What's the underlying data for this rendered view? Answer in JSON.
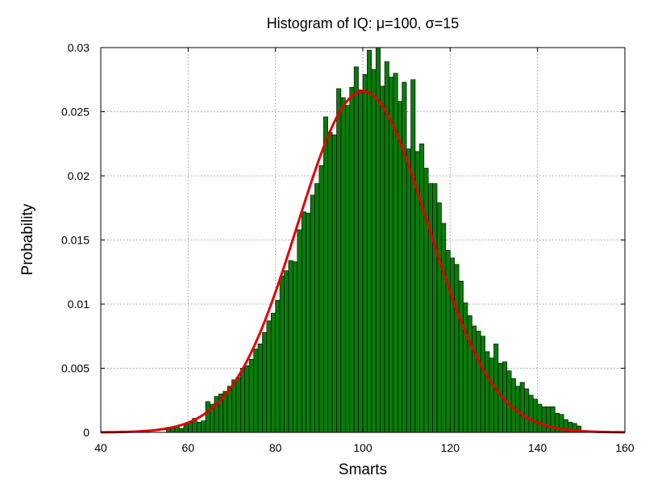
{
  "chart_data": {
    "type": "bar",
    "title": "Histogram of IQ: μ=100, σ=15",
    "xlabel": "Smarts",
    "ylabel": "Probability",
    "xlim": [
      40,
      160
    ],
    "ylim": [
      0,
      0.03
    ],
    "grid": true,
    "x_ticks": [
      "40",
      "60",
      "80",
      "100",
      "120",
      "140",
      "160"
    ],
    "y_ticks": [
      "0",
      "0.005",
      "0.01",
      "0.015",
      "0.02",
      "0.025",
      "0.03"
    ],
    "colors": {
      "bars": "#0b7a0b",
      "bar_edge": "#000000",
      "curve": "#e00000"
    },
    "histogram": {
      "bin_start": 55,
      "bin_width": 1,
      "values": [
        0.0004,
        0.0004,
        0.0005,
        0.0003,
        0.0007,
        0.0008,
        0.0011,
        0.0008,
        0.0009,
        0.0024,
        0.0022,
        0.0028,
        0.003,
        0.0032,
        0.0036,
        0.0041,
        0.0043,
        0.005,
        0.0052,
        0.0057,
        0.0065,
        0.0069,
        0.0078,
        0.0087,
        0.0093,
        0.0103,
        0.0122,
        0.0126,
        0.0134,
        0.0133,
        0.0158,
        0.0172,
        0.0171,
        0.0185,
        0.0194,
        0.0208,
        0.0246,
        0.0234,
        0.0232,
        0.0268,
        0.0261,
        0.0255,
        0.0269,
        0.0285,
        0.0267,
        0.0279,
        0.0298,
        0.0283,
        0.03,
        0.027,
        0.0289,
        0.0277,
        0.028,
        0.0258,
        0.0273,
        0.0221,
        0.0275,
        0.0219,
        0.0225,
        0.0206,
        0.0194,
        0.0194,
        0.0179,
        0.0163,
        0.0142,
        0.0136,
        0.0131,
        0.0118,
        0.0101,
        0.0091,
        0.0083,
        0.0079,
        0.0075,
        0.0063,
        0.0058,
        0.0069,
        0.0054,
        0.0055,
        0.0048,
        0.0042,
        0.0036,
        0.0039,
        0.0034,
        0.0029,
        0.0026,
        0.0022,
        0.002,
        0.002,
        0.002,
        0.0015,
        0.0014,
        0.001,
        0.0008,
        0.0007,
        0.0005
      ]
    },
    "curve": {
      "label": "",
      "type": "normal_pdf",
      "mean": 100,
      "std": 15
    }
  }
}
